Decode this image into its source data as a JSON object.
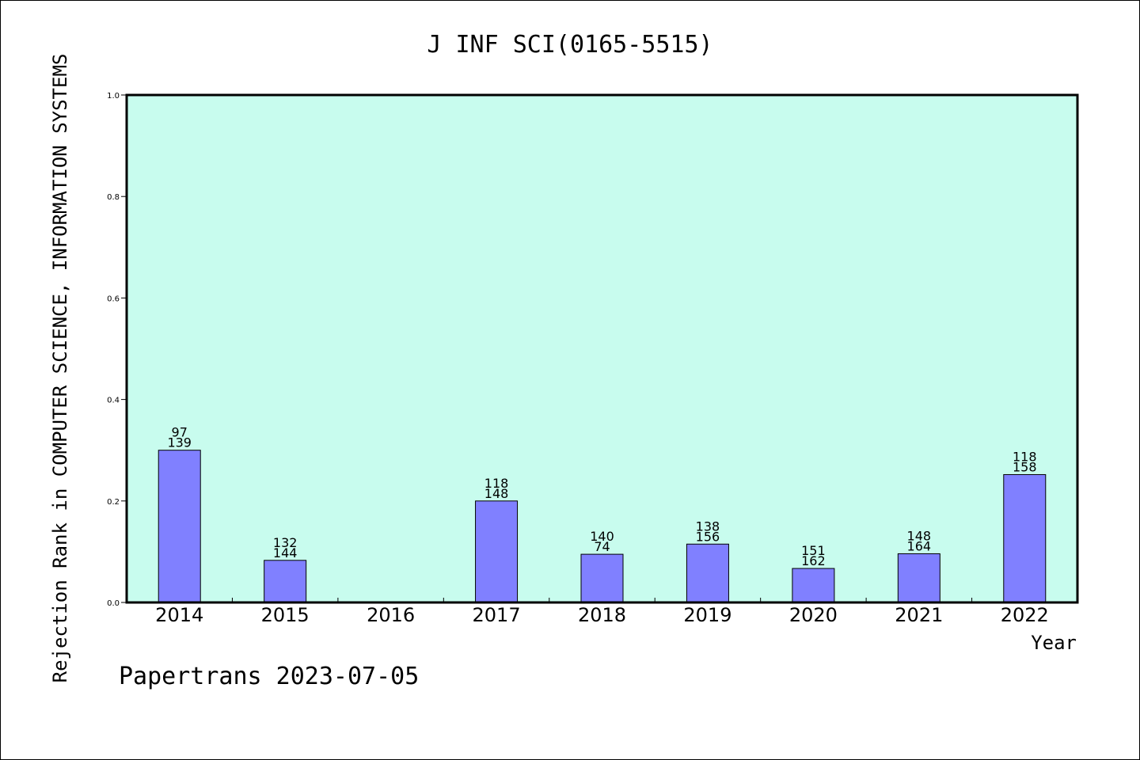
{
  "chart_data": {
    "type": "bar",
    "title": "J INF SCI(0165-5515)",
    "xlabel": "Year",
    "ylabel": "Rejection Rank in COMPUTER SCIENCE, INFORMATION SYSTEMS",
    "footer": "Papertrans 2023-07-05",
    "categories": [
      "2014",
      "2015",
      "2016",
      "2017",
      "2018",
      "2019",
      "2020",
      "2021",
      "2022"
    ],
    "values": [
      0.3,
      0.083,
      null,
      0.2,
      0.095,
      0.115,
      0.067,
      0.096,
      0.252
    ],
    "label_top": [
      "97",
      "132",
      "",
      "118",
      "140",
      "138",
      "151",
      "148",
      "118"
    ],
    "label_bottom": [
      "139",
      "144",
      "",
      "148",
      "74",
      "156",
      "162",
      "164",
      "158"
    ],
    "ylim": [
      0,
      1.0
    ],
    "yticks": [
      "0.0",
      "0.2",
      "0.4",
      "0.6",
      "0.8",
      "1.0"
    ],
    "grid": false,
    "colors": {
      "plot_background": "#c8fcee",
      "bar_fill": "#8080ff",
      "bar_stroke": "#000000",
      "axis": "#000000"
    }
  }
}
